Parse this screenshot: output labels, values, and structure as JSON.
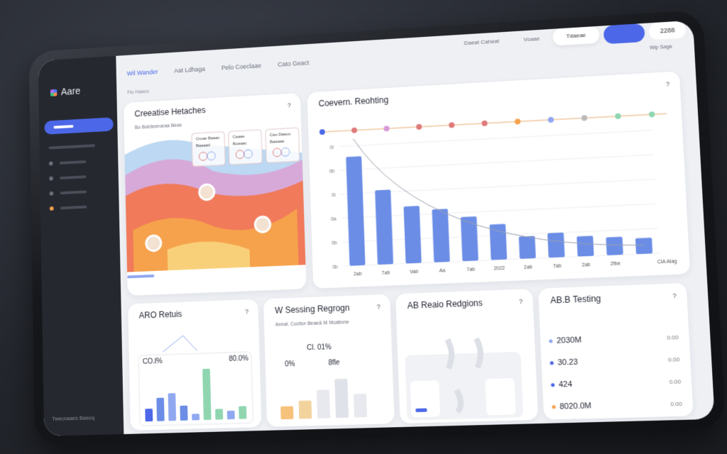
{
  "sidebar": {
    "brand": "Aare",
    "footer": "Twecraaes Bascq"
  },
  "topnav": {
    "tabs": [
      "Wil Wander",
      "Aat Ldhaga",
      "Pelo Coeclaae",
      "Cato Geact"
    ],
    "links": [
      "Daeat Caheat",
      "Voaae"
    ],
    "search": "Tdaeae",
    "count": "2288",
    "subtitle": "Wip Saga"
  },
  "breadcrumb": "Fiu Haaou",
  "help_icon": "?",
  "heatmap_card": {
    "title": "Creeatise Hetaches",
    "subtitle": "Bo Bolcteeroeaa Beas",
    "legend": [
      [
        "Croae Baaac",
        "Baaaad"
      ],
      [
        "Caaae",
        "Boaaac"
      ],
      [
        "Cao Daaoo",
        "Baaaaa"
      ]
    ]
  },
  "coverage_card": {
    "title": "Coevern. Reohting",
    "color": "#6b8de6",
    "ylim": [
      0,
      110
    ],
    "y_labels": [
      "0/",
      "0b",
      "0i",
      "0a",
      "0b",
      "0b"
    ],
    "x_labels": [
      "2ab",
      "7ab",
      "Vab",
      "Aa",
      "7ab",
      "2022",
      "2ab",
      "7ab",
      "2ab",
      "2fbe"
    ],
    "end_label": "ClA Alag",
    "values": [
      100,
      68,
      52,
      48,
      40,
      32,
      20,
      22,
      18,
      16,
      14
    ]
  },
  "aro_card": {
    "title": "ARO Retuis",
    "left_stat": "CO.l%",
    "right_stat": "80.0%",
    "values": [
      12,
      22,
      26,
      14,
      6,
      48,
      10,
      8,
      12
    ],
    "colors": [
      "#4c68e8",
      "#6b8de6",
      "#8fa8f0",
      "#6b8de6",
      "#8fa8f0",
      "#8fd6b0",
      "#8fd6b0",
      "#8fa8f0",
      "#8fd6b0"
    ]
  },
  "session_card": {
    "title": "W Sessing Regrogn",
    "subtitle": "Annal. Coctior Beae& M Mcatione",
    "stats": [
      "Cl. 01%",
      "0%",
      "8fle"
    ],
    "values": [
      10,
      14,
      22,
      30,
      18
    ],
    "colors": [
      "#f6c17a",
      "#f3d39d",
      "#e7e9ee",
      "#dfe2e8",
      "#e7e9ee"
    ]
  },
  "region_card": {
    "title": "AB Reaio Redgions"
  },
  "testing_card": {
    "title": "AB.B Testing",
    "rows": [
      [
        "2030M",
        "0.00"
      ],
      [
        "30.23",
        "0.00"
      ],
      [
        "424",
        "0.00"
      ],
      [
        "8020.0M",
        "0.00"
      ]
    ],
    "dot_colors": [
      "#8fa8f0",
      "#4c68e8",
      "#4c68e8",
      "#f6a24c"
    ]
  }
}
